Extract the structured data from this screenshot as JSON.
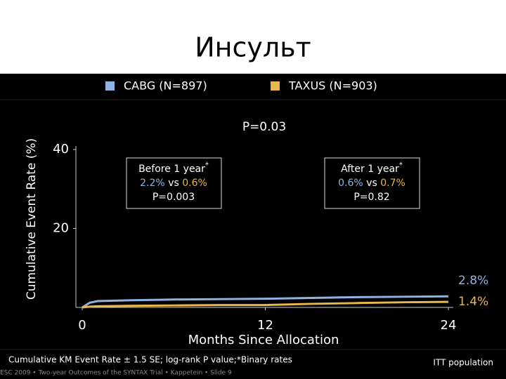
{
  "slide_title": "Инсульт",
  "chart_data": {
    "type": "line",
    "y_label": "Cumulative Event Rate (%)",
    "x_label": "Months Since Allocation",
    "p_overall": "P=0.03",
    "x": [
      0,
      0.5,
      1,
      3,
      6,
      9,
      12,
      15,
      18,
      21,
      24
    ],
    "xlim": [
      0,
      24
    ],
    "xticks": [
      0,
      12,
      24
    ],
    "ylim": [
      0,
      40
    ],
    "yticks": [
      20,
      40
    ],
    "series": [
      {
        "name": "CABG (N=897)",
        "color": "#8fb4e3",
        "values": [
          0,
          1.2,
          1.6,
          1.8,
          2.0,
          2.1,
          2.2,
          2.4,
          2.6,
          2.7,
          2.8
        ],
        "value_labels": [
          null,
          null,
          null,
          null,
          null,
          null,
          null,
          null,
          null,
          null,
          "2.8%"
        ]
      },
      {
        "name": "TAXUS (N=903)",
        "color": "#e8b84a",
        "values": [
          0,
          0.2,
          0.3,
          0.4,
          0.5,
          0.6,
          0.6,
          0.9,
          1.1,
          1.3,
          1.4
        ],
        "value_labels": [
          null,
          null,
          null,
          null,
          null,
          null,
          null,
          null,
          null,
          null,
          "1.4%"
        ]
      }
    ],
    "boxes": [
      {
        "heading": "Before 1 year",
        "mark": "*",
        "cabg": "2.2%",
        "vs": "vs",
        "taxus": "0.6%",
        "p": "P=0.003"
      },
      {
        "heading": "After 1 year",
        "mark": "*",
        "cabg": "0.6%",
        "vs": "vs",
        "taxus": "0.7%",
        "p": "P=0.82"
      }
    ]
  },
  "footer": {
    "note": "Cumulative KM Event Rate ± 1.5 SE; log-rank P value;*Binary rates",
    "population": "ITT population",
    "credit": "ESC 2009 • Two-year Outcomes of the SYNTAX Trial • Kappetein • Slide 9"
  }
}
